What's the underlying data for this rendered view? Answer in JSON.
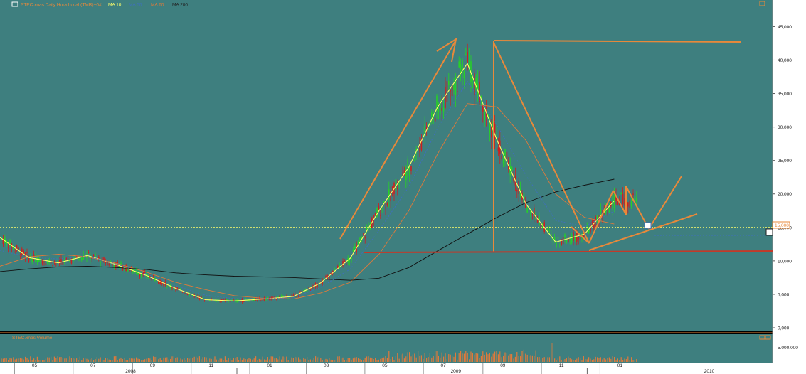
{
  "header": {
    "symbol_label": "STEC.xnas Daily Hora Local (TMR)+0#",
    "ma10_label": "MA 10",
    "ma50_label": "MA 50",
    "ma60_label": "MA 60",
    "ma200_label": "MA 200"
  },
  "volume_panel": {
    "title": "STEC.xnas Volume",
    "scale_label": "5.000.000"
  },
  "price_marker": "15,000",
  "colors": {
    "background": "#3e7f7f",
    "up": "#27d127",
    "down": "#d01e1e",
    "ma10": "#ffff6a",
    "ma50": "#3f6fbf",
    "ma60": "#e07a3a",
    "ma200": "#111111",
    "drawing": "#e8893a"
  },
  "chart_data": [
    {
      "type": "line",
      "title": "STEC.xnas Daily Hora Local (TMR)+0#",
      "y_ticks": [
        "0,000",
        "5,000",
        "10,000",
        "15,000",
        "20,000",
        "25,000",
        "30,000",
        "35,000",
        "40,000",
        "45,000"
      ],
      "ylim": [
        0,
        46000
      ],
      "x_month_ticks": [
        "05",
        "07",
        "09",
        "11",
        "01",
        "03",
        "05",
        "07",
        "09",
        "11",
        "01"
      ],
      "x_year_labels": [
        "2008",
        "2009",
        "2010"
      ],
      "horizontal_line_value": 15000,
      "grid": false,
      "x": [
        "2008-04-01",
        "2008-05-01",
        "2008-06-01",
        "2008-07-01",
        "2008-08-01",
        "2008-09-01",
        "2008-10-01",
        "2008-11-01",
        "2008-12-01",
        "2009-01-01",
        "2009-02-01",
        "2009-03-01",
        "2009-04-01",
        "2009-05-01",
        "2009-06-01",
        "2009-07-01",
        "2009-08-01",
        "2009-09-01",
        "2009-10-01",
        "2009-11-01",
        "2009-12-01",
        "2010-01-01"
      ],
      "series": [
        {
          "name": "MA 10",
          "values": [
            13500,
            10500,
            9700,
            10800,
            9400,
            7800,
            5900,
            4200,
            4000,
            4300,
            4700,
            6700,
            10400,
            17500,
            24000,
            33000,
            39500,
            28000,
            18500,
            12800,
            14000,
            19000
          ]
        },
        {
          "name": "MA 60",
          "values": [
            9200,
            10600,
            11000,
            10600,
            9600,
            8300,
            6800,
            5700,
            4800,
            4400,
            4300,
            5200,
            6800,
            11000,
            17500,
            26000,
            33500,
            33000,
            28000,
            20000,
            16500,
            15500
          ]
        },
        {
          "name": "MA 200",
          "values": [
            8400,
            8800,
            9100,
            9200,
            9000,
            8700,
            8200,
            7900,
            7700,
            7600,
            7500,
            7300,
            7100,
            7400,
            9000,
            11500,
            14000,
            16500,
            18700,
            20300,
            21300,
            22200
          ]
        }
      ]
    },
    {
      "type": "bar",
      "title": "STEC.xnas Volume",
      "y_ticks": [
        "5.000.000"
      ]
    }
  ]
}
